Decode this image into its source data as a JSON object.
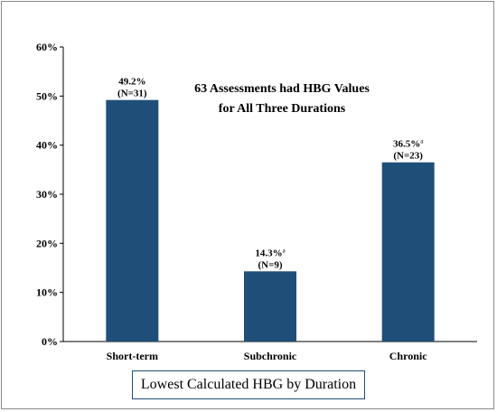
{
  "chart_data": {
    "type": "bar",
    "title": "Lowest Calculated HBG by Duration",
    "annotation": [
      "63 Assessments had HBG Values",
      "for All Three Durations"
    ],
    "categories": [
      "Short-term",
      "Subchronic",
      "Chronic"
    ],
    "values": [
      49.2,
      14.3,
      36.5
    ],
    "value_labels": [
      "49.2%",
      "14.3%",
      "36.5%"
    ],
    "value_superscripts": [
      "",
      "a",
      "a"
    ],
    "n_labels": [
      "(N=31)",
      "(N=9)",
      "(N=23)"
    ],
    "ylim": [
      0,
      60
    ],
    "yticks": [
      "0%",
      "10%",
      "20%",
      "30%",
      "40%",
      "50%",
      "60%"
    ],
    "bar_color": "#1f4e79",
    "grid": false
  }
}
